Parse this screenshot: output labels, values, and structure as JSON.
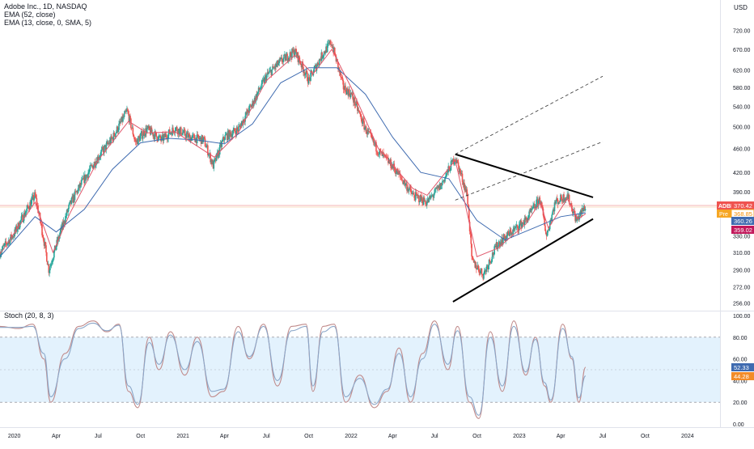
{
  "header": {
    "symbol_line": "Adobe Inc., 1D, NASDAQ",
    "ema1": "EMA (52, close)",
    "ema2": "EMA (13, close, 0, SMA, 5)",
    "currency": "USD"
  },
  "stoch": {
    "title": "Stoch (20, 8, 3)"
  },
  "colors": {
    "up": "#26a69a",
    "down": "#ef5350",
    "ema_fast": "#e0576b",
    "ema_slow": "#3f6bb0",
    "stoch_band": "#e3f2fd",
    "stoch_line": "#c08a8a",
    "stoch_signal": "#8aa6c8",
    "trend": "#000000"
  },
  "price_labels": {
    "symbol": "ADBE",
    "symbol_value": "370.42",
    "pre": "Pre",
    "pre_value": "368.85",
    "ema_slow_value": "360.26",
    "ema_fast_value": "359.02"
  },
  "stoch_labels": {
    "k_value": "52.33",
    "d_value": "44.28"
  },
  "chart_data": [
    {
      "type": "candlestick",
      "title": "Adobe Inc., 1D, NASDAQ",
      "scale": "log",
      "ylim": [
        250,
        760
      ],
      "ylabel": "USD",
      "y_ticks": [
        "720.00",
        "670.00",
        "620.00",
        "580.00",
        "540.00",
        "500.00",
        "460.00",
        "420.00",
        "390.00",
        "360.00",
        "330.00",
        "310.00",
        "290.00",
        "272.00",
        "256.00"
      ],
      "y_tick_values": [
        720,
        670,
        620,
        580,
        540,
        500,
        460,
        420,
        390,
        360,
        330,
        310,
        290,
        272,
        256
      ],
      "x_ticks": [
        "2020",
        "Apr",
        "Jul",
        "Oct",
        "2021",
        "Apr",
        "Jul",
        "Oct",
        "2022",
        "Apr",
        "Jul",
        "Oct",
        "2023",
        "Apr",
        "Jul",
        "Oct",
        "2024"
      ],
      "x_tick_dates": [
        "2020-01-01",
        "2020-04-01",
        "2020-07-01",
        "2020-10-01",
        "2021-01-01",
        "2021-04-01",
        "2021-07-01",
        "2021-10-01",
        "2022-01-01",
        "2022-04-01",
        "2022-07-01",
        "2022-10-01",
        "2023-01-01",
        "2023-04-01",
        "2023-07-01",
        "2023-10-01",
        "2024-01-01"
      ],
      "xlim": [
        "2019-12-01",
        "2024-03-01"
      ],
      "series": [
        {
          "name": "EMA (52, close)"
        },
        {
          "name": "EMA (13, close, 0, SMA, 5)"
        }
      ],
      "close": [
        {
          "date": "2019-12-01",
          "close": 310
        },
        {
          "date": "2020-01-01",
          "close": 333
        },
        {
          "date": "2020-02-15",
          "close": 385
        },
        {
          "date": "2020-03-16",
          "close": 290
        },
        {
          "date": "2020-04-01",
          "close": 318
        },
        {
          "date": "2020-05-01",
          "close": 372
        },
        {
          "date": "2020-06-01",
          "close": 410
        },
        {
          "date": "2020-07-01",
          "close": 445
        },
        {
          "date": "2020-08-01",
          "close": 478
        },
        {
          "date": "2020-09-02",
          "close": 530
        },
        {
          "date": "2020-09-20",
          "close": 470
        },
        {
          "date": "2020-10-15",
          "close": 495
        },
        {
          "date": "2020-11-15",
          "close": 475
        },
        {
          "date": "2020-12-15",
          "close": 497
        },
        {
          "date": "2021-01-15",
          "close": 480
        },
        {
          "date": "2021-02-15",
          "close": 475
        },
        {
          "date": "2021-03-08",
          "close": 430
        },
        {
          "date": "2021-04-01",
          "close": 480
        },
        {
          "date": "2021-05-01",
          "close": 495
        },
        {
          "date": "2021-06-01",
          "close": 545
        },
        {
          "date": "2021-07-01",
          "close": 605
        },
        {
          "date": "2021-08-01",
          "close": 640
        },
        {
          "date": "2021-09-01",
          "close": 665
        },
        {
          "date": "2021-10-01",
          "close": 595
        },
        {
          "date": "2021-11-01",
          "close": 660
        },
        {
          "date": "2021-11-19",
          "close": 688
        },
        {
          "date": "2021-12-15",
          "close": 580
        },
        {
          "date": "2022-01-01",
          "close": 565
        },
        {
          "date": "2022-02-01",
          "close": 495
        },
        {
          "date": "2022-03-01",
          "close": 455
        },
        {
          "date": "2022-04-01",
          "close": 430
        },
        {
          "date": "2022-05-15",
          "close": 385
        },
        {
          "date": "2022-06-15",
          "close": 375
        },
        {
          "date": "2022-07-15",
          "close": 400
        },
        {
          "date": "2022-08-15",
          "close": 445
        },
        {
          "date": "2022-09-10",
          "close": 385
        },
        {
          "date": "2022-09-20",
          "close": 300
        },
        {
          "date": "2022-10-15",
          "close": 285
        },
        {
          "date": "2022-11-15",
          "close": 320
        },
        {
          "date": "2022-12-15",
          "close": 335
        },
        {
          "date": "2023-01-15",
          "close": 350
        },
        {
          "date": "2023-02-15",
          "close": 380
        },
        {
          "date": "2023-03-01",
          "close": 330
        },
        {
          "date": "2023-03-20",
          "close": 375
        },
        {
          "date": "2023-04-15",
          "close": 385
        },
        {
          "date": "2023-05-05",
          "close": 350
        },
        {
          "date": "2023-05-25",
          "close": 370
        }
      ],
      "ema_52": [
        {
          "date": "2019-12-01",
          "close": 305
        },
        {
          "date": "2020-02-15",
          "close": 355
        },
        {
          "date": "2020-04-01",
          "close": 335
        },
        {
          "date": "2020-06-01",
          "close": 365
        },
        {
          "date": "2020-08-01",
          "close": 425
        },
        {
          "date": "2020-10-01",
          "close": 470
        },
        {
          "date": "2020-12-01",
          "close": 478
        },
        {
          "date": "2021-02-01",
          "close": 475
        },
        {
          "date": "2021-04-01",
          "close": 468
        },
        {
          "date": "2021-06-01",
          "close": 505
        },
        {
          "date": "2021-08-01",
          "close": 590
        },
        {
          "date": "2021-10-01",
          "close": 625
        },
        {
          "date": "2021-12-01",
          "close": 625
        },
        {
          "date": "2022-02-01",
          "close": 565
        },
        {
          "date": "2022-04-01",
          "close": 480
        },
        {
          "date": "2022-06-01",
          "close": 420
        },
        {
          "date": "2022-08-01",
          "close": 410
        },
        {
          "date": "2022-10-01",
          "close": 350
        },
        {
          "date": "2022-12-01",
          "close": 325
        },
        {
          "date": "2023-02-01",
          "close": 340
        },
        {
          "date": "2023-04-01",
          "close": 355
        },
        {
          "date": "2023-05-25",
          "close": 360.26
        }
      ],
      "ema_13": [
        {
          "date": "2019-12-01",
          "close": 308
        },
        {
          "date": "2020-02-15",
          "close": 375
        },
        {
          "date": "2020-03-25",
          "close": 310
        },
        {
          "date": "2020-05-01",
          "close": 360
        },
        {
          "date": "2020-07-01",
          "close": 440
        },
        {
          "date": "2020-09-05",
          "close": 510
        },
        {
          "date": "2020-10-15",
          "close": 488
        },
        {
          "date": "2020-12-15",
          "close": 490
        },
        {
          "date": "2021-03-10",
          "close": 445
        },
        {
          "date": "2021-05-01",
          "close": 488
        },
        {
          "date": "2021-07-01",
          "close": 595
        },
        {
          "date": "2021-09-01",
          "close": 655
        },
        {
          "date": "2021-10-10",
          "close": 610
        },
        {
          "date": "2021-11-20",
          "close": 670
        },
        {
          "date": "2022-01-01",
          "close": 580
        },
        {
          "date": "2022-03-01",
          "close": 460
        },
        {
          "date": "2022-05-15",
          "close": 395
        },
        {
          "date": "2022-06-15",
          "close": 385
        },
        {
          "date": "2022-08-15",
          "close": 440
        },
        {
          "date": "2022-10-01",
          "close": 305
        },
        {
          "date": "2022-11-15",
          "close": 315
        },
        {
          "date": "2023-01-15",
          "close": 345
        },
        {
          "date": "2023-02-15",
          "close": 375
        },
        {
          "date": "2023-03-05",
          "close": 340
        },
        {
          "date": "2023-04-15",
          "close": 380
        },
        {
          "date": "2023-05-08",
          "close": 352
        },
        {
          "date": "2023-05-25",
          "close": 359.02
        }
      ],
      "trendlines": [
        {
          "from": {
            "date": "2022-08-15",
            "close": 450
          },
          "to": {
            "date": "2023-06-10",
            "close": 382
          }
        },
        {
          "from": {
            "date": "2022-08-10",
            "close": 257
          },
          "to": {
            "date": "2023-06-10",
            "close": 352
          }
        }
      ],
      "channels": [
        {
          "from": {
            "date": "2022-08-15",
            "close": 450
          },
          "to": {
            "date": "2023-07-01",
            "close": 605
          }
        },
        {
          "from": {
            "date": "2022-08-15",
            "close": 378
          },
          "to": {
            "date": "2023-07-01",
            "close": 472
          }
        }
      ],
      "horizontal_lines": [
        370.42
      ]
    },
    {
      "type": "line",
      "title": "Stoch (20, 8, 3)",
      "ylim": [
        0,
        100
      ],
      "y_ticks": [
        "100.00",
        "80.00",
        "60.00",
        "40.00",
        "20.00",
        "0.00"
      ],
      "y_tick_values": [
        100,
        80,
        60,
        40,
        20,
        0
      ],
      "band": [
        20,
        80
      ],
      "midline": 50,
      "x": [
        "2019-12-01",
        "2020-01-10",
        "2020-02-10",
        "2020-03-05",
        "2020-03-20",
        "2020-04-20",
        "2020-05-20",
        "2020-06-20",
        "2020-07-20",
        "2020-08-15",
        "2020-09-05",
        "2020-09-25",
        "2020-10-20",
        "2020-11-10",
        "2020-12-05",
        "2021-01-05",
        "2021-02-01",
        "2021-03-05",
        "2021-03-30",
        "2021-05-01",
        "2021-05-25",
        "2021-06-25",
        "2021-07-25",
        "2021-08-25",
        "2021-09-25",
        "2021-10-10",
        "2021-11-01",
        "2021-11-25",
        "2021-12-20",
        "2022-01-20",
        "2022-02-20",
        "2022-03-20",
        "2022-04-15",
        "2022-05-10",
        "2022-06-05",
        "2022-07-01",
        "2022-07-30",
        "2022-08-20",
        "2022-09-15",
        "2022-10-05",
        "2022-10-30",
        "2022-11-25",
        "2022-12-20",
        "2023-01-15",
        "2023-02-05",
        "2023-02-25",
        "2023-03-10",
        "2023-04-05",
        "2023-04-25",
        "2023-05-10",
        "2023-05-25"
      ],
      "series": [
        {
          "name": "%K",
          "values": [
            90,
            88,
            92,
            60,
            20,
            65,
            90,
            95,
            85,
            92,
            30,
            15,
            80,
            50,
            85,
            45,
            80,
            25,
            30,
            90,
            60,
            92,
            35,
            90,
            92,
            30,
            90,
            92,
            20,
            45,
            15,
            30,
            70,
            20,
            65,
            95,
            50,
            90,
            20,
            5,
            85,
            30,
            95,
            45,
            80,
            35,
            20,
            92,
            60,
            20,
            52.33
          ]
        },
        {
          "name": "%D",
          "values": [
            89,
            89,
            90,
            65,
            25,
            60,
            88,
            93,
            86,
            91,
            35,
            18,
            75,
            55,
            82,
            50,
            76,
            30,
            32,
            85,
            62,
            90,
            40,
            86,
            90,
            35,
            85,
            90,
            25,
            42,
            18,
            32,
            65,
            25,
            60,
            92,
            55,
            86,
            25,
            8,
            80,
            35,
            90,
            48,
            78,
            38,
            22,
            88,
            62,
            24,
            44.28
          ]
        }
      ]
    }
  ]
}
